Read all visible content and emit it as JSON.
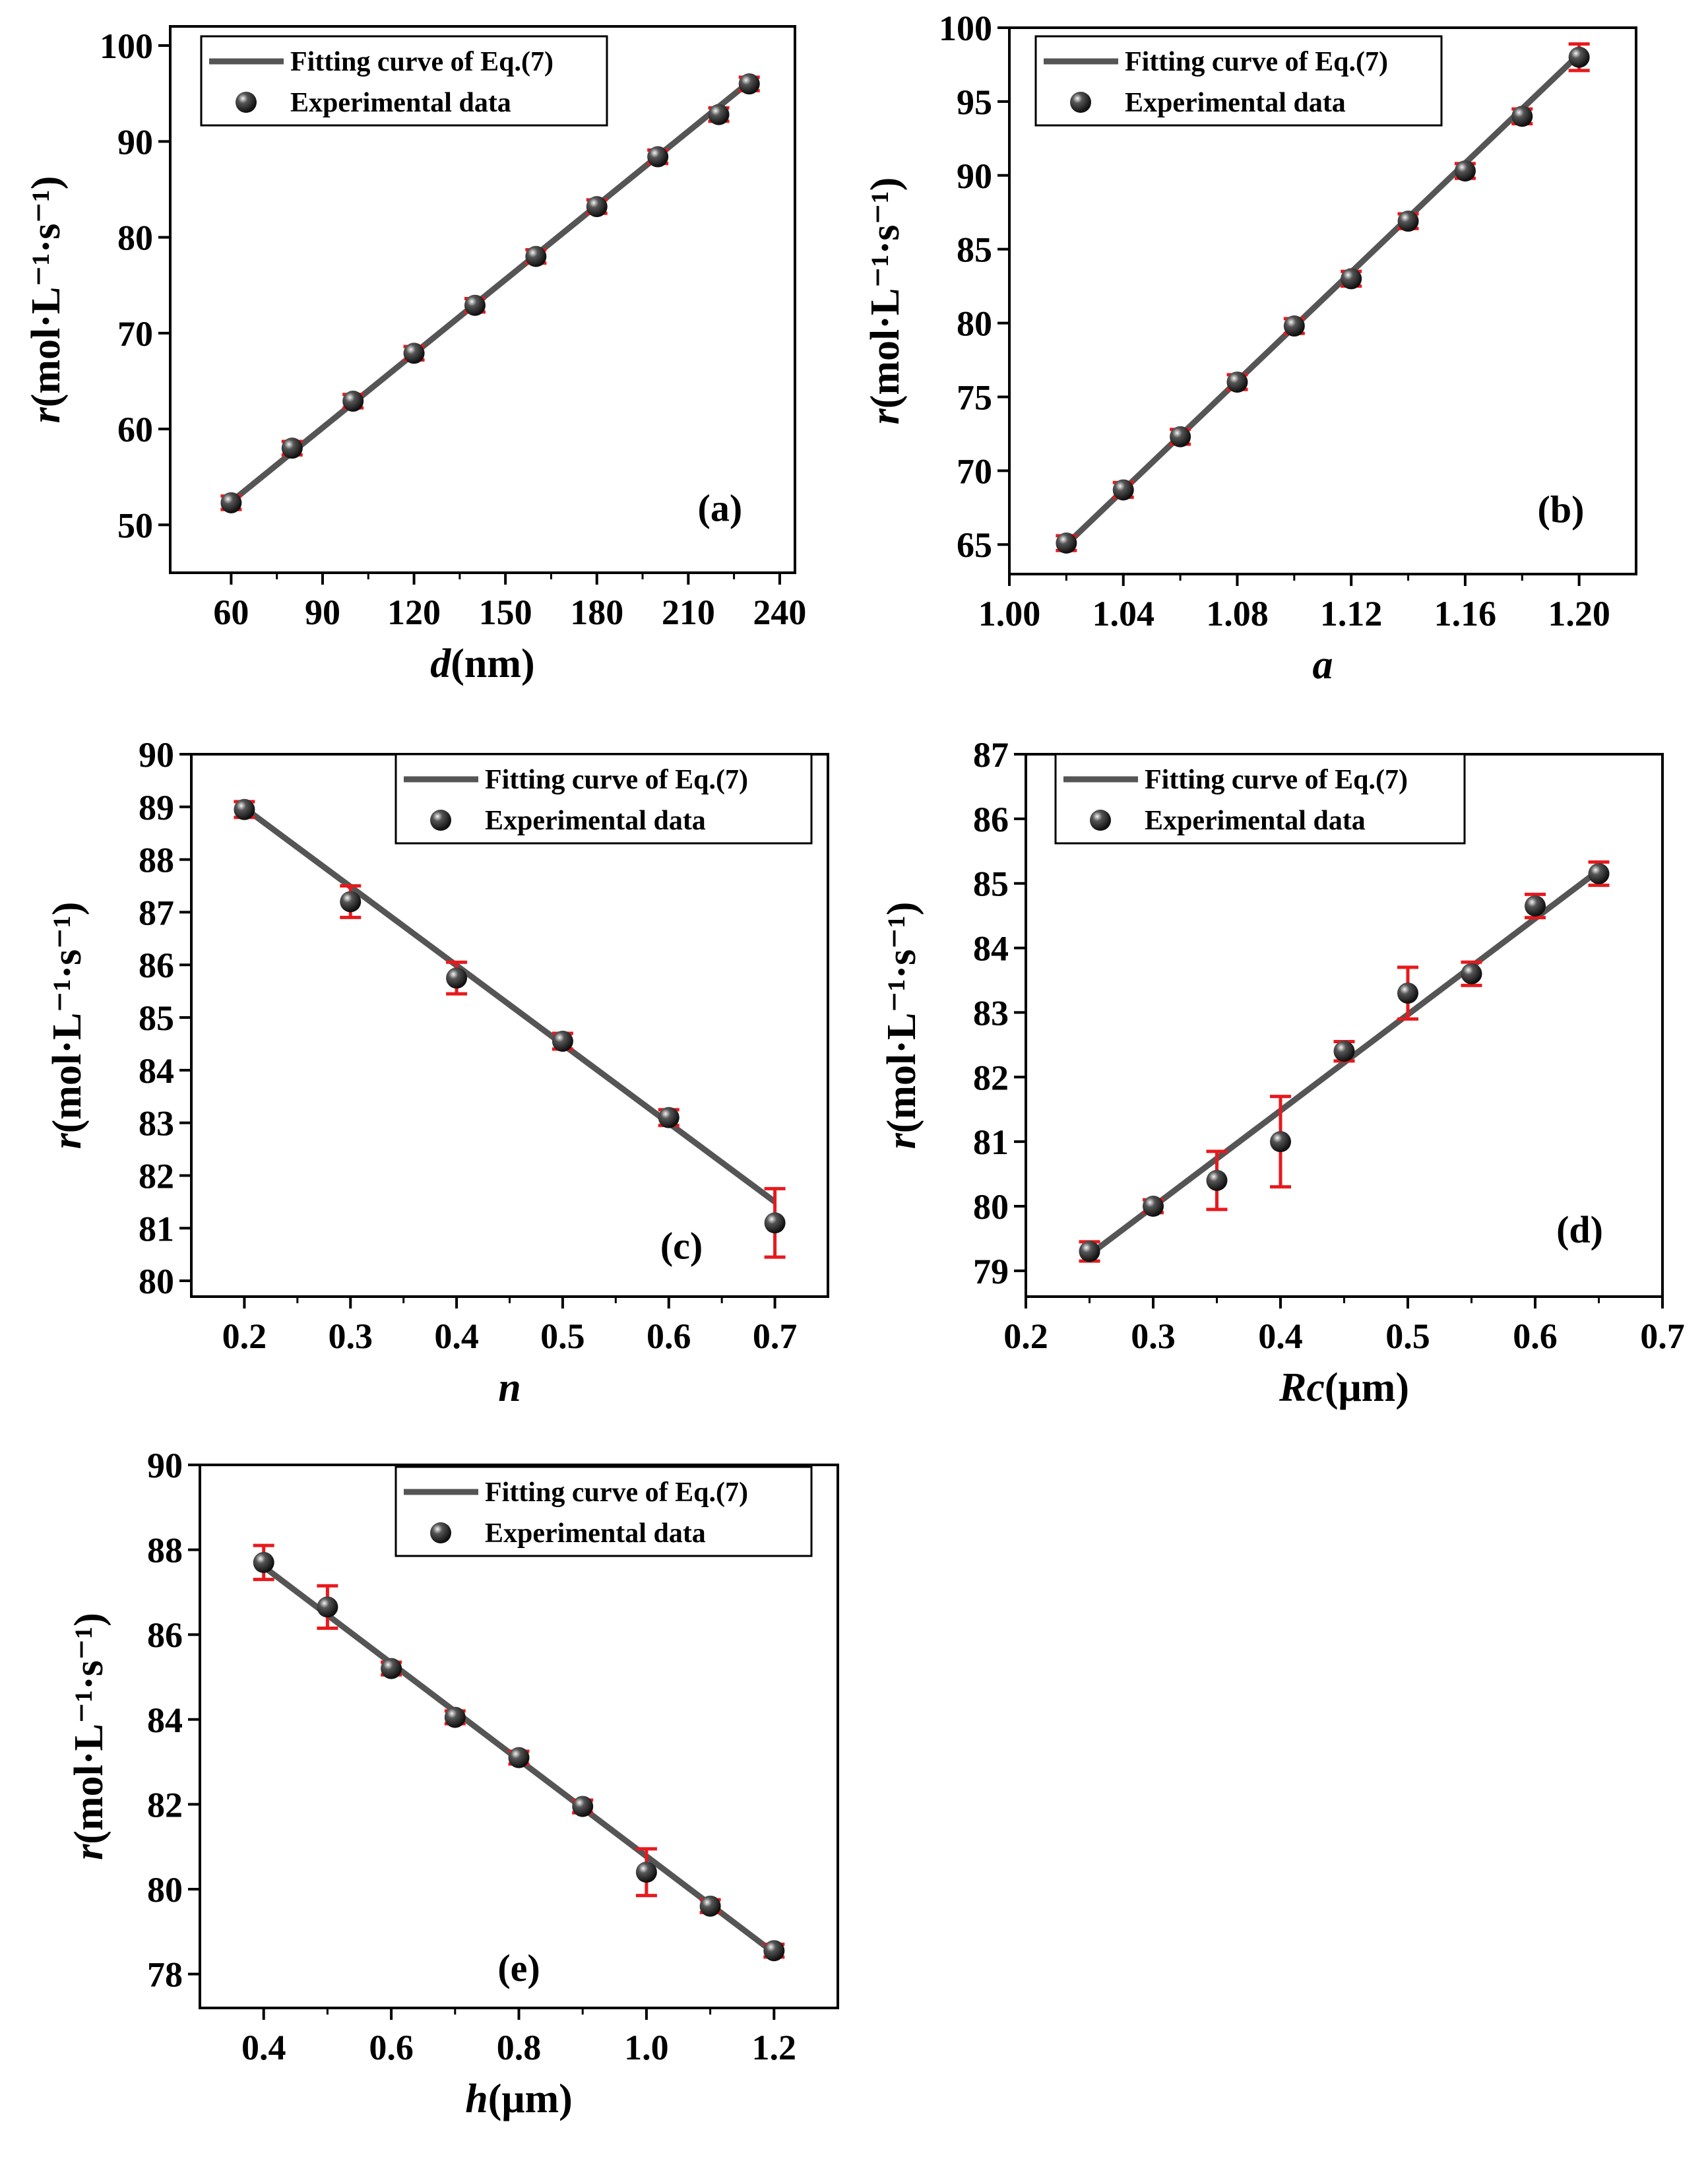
{
  "figure_title": "",
  "legend": {
    "fit_label": "Fitting curve of Eq.(7)",
    "data_label": "Experimental data"
  },
  "colors": {
    "fit_line": "#555555",
    "marker": "#111111",
    "error_bar": "#e8191d",
    "axis": "#000000"
  },
  "chart_data": [
    {
      "panel": "(a)",
      "type": "scatter",
      "xlabel_italic": "d",
      "xlabel_rest": "(nm)",
      "ylabel_italic": "r",
      "ylabel_rest": "(mol·L⁻¹·s⁻¹)",
      "xlim": [
        40,
        245
      ],
      "ylim": [
        45,
        102
      ],
      "xticks": [
        60,
        90,
        120,
        150,
        180,
        210,
        240
      ],
      "yticks": [
        50,
        60,
        70,
        80,
        90,
        100
      ],
      "tick_decimals": 0,
      "x": [
        60,
        80,
        100,
        120,
        140,
        160,
        180,
        200,
        220,
        230
      ],
      "y": [
        52.3,
        58.0,
        62.9,
        67.9,
        72.9,
        78.0,
        83.2,
        88.4,
        92.8,
        96.0
      ],
      "err": [
        0.7,
        0.7,
        0.7,
        0.7,
        0.7,
        0.7,
        0.7,
        0.7,
        0.7,
        0.7
      ],
      "fit": [
        [
          60,
          52.4
        ],
        [
          230,
          96.2
        ]
      ]
    },
    {
      "panel": "(b)",
      "type": "scatter",
      "xlabel_italic": "a",
      "xlabel_rest": "",
      "ylabel_italic": "r",
      "ylabel_rest": "(mol·L⁻¹·s⁻¹)",
      "xlim": [
        1.0,
        1.22
      ],
      "ylim": [
        63,
        100
      ],
      "xticks": [
        1.0,
        1.04,
        1.08,
        1.12,
        1.16,
        1.2
      ],
      "yticks": [
        65,
        70,
        75,
        80,
        85,
        90,
        95,
        100
      ],
      "tick_decimals": 2,
      "ytick_decimals": 0,
      "x": [
        1.02,
        1.04,
        1.06,
        1.08,
        1.1,
        1.12,
        1.14,
        1.16,
        1.18,
        1.2
      ],
      "y": [
        65.1,
        68.7,
        72.3,
        76.0,
        79.8,
        83.0,
        86.9,
        90.3,
        94.0,
        98.0
      ],
      "err": [
        0.5,
        0.5,
        0.5,
        0.5,
        0.5,
        0.5,
        0.5,
        0.5,
        0.5,
        0.9
      ],
      "fit": [
        [
          1.02,
          65.0
        ],
        [
          1.2,
          98.2
        ]
      ]
    },
    {
      "panel": "(c)",
      "type": "scatter",
      "xlabel_italic": "n",
      "xlabel_rest": "",
      "ylabel_italic": "r",
      "ylabel_rest": "(mol·L⁻¹·s⁻¹)",
      "xlim": [
        0.15,
        0.75
      ],
      "ylim": [
        79.7,
        90
      ],
      "xticks": [
        0.2,
        0.3,
        0.4,
        0.5,
        0.6,
        0.7
      ],
      "yticks": [
        80,
        81,
        82,
        83,
        84,
        85,
        86,
        87,
        88,
        89,
        90
      ],
      "tick_decimals": 1,
      "ytick_decimals": 0,
      "x": [
        0.2,
        0.3,
        0.4,
        0.5,
        0.6,
        0.7
      ],
      "y": [
        88.95,
        87.2,
        85.75,
        84.55,
        83.1,
        81.1
      ],
      "err": [
        0.15,
        0.3,
        0.3,
        0.15,
        0.15,
        0.65
      ],
      "fit": [
        [
          0.2,
          88.98
        ],
        [
          0.7,
          81.5
        ]
      ]
    },
    {
      "panel": "(d)",
      "type": "scatter",
      "xlabel_italic": "Rc",
      "xlabel_rest": "(μm)",
      "ylabel_italic": "r",
      "ylabel_rest": "(mol·L⁻¹·s⁻¹)",
      "xlim": [
        0.2,
        0.7
      ],
      "ylim": [
        78.6,
        87
      ],
      "xticks": [
        0.2,
        0.3,
        0.4,
        0.5,
        0.6,
        0.7
      ],
      "yticks": [
        79,
        80,
        81,
        82,
        83,
        84,
        85,
        86,
        87
      ],
      "tick_decimals": 1,
      "ytick_decimals": 0,
      "x": [
        0.25,
        0.3,
        0.35,
        0.4,
        0.45,
        0.5,
        0.55,
        0.6,
        0.65
      ],
      "y": [
        79.3,
        80.0,
        80.4,
        81.0,
        82.4,
        83.3,
        83.6,
        84.65,
        85.15
      ],
      "err": [
        0.15,
        0.1,
        0.45,
        0.7,
        0.15,
        0.4,
        0.18,
        0.18,
        0.18
      ],
      "fit": [
        [
          0.25,
          79.25
        ],
        [
          0.65,
          85.2
        ]
      ]
    },
    {
      "panel": "(e)",
      "type": "scatter",
      "xlabel_italic": "h",
      "xlabel_rest": "(μm)",
      "ylabel_italic": "r",
      "ylabel_rest": "(mol·L⁻¹·s⁻¹)",
      "xlim": [
        0.3,
        1.3
      ],
      "ylim": [
        77.2,
        90
      ],
      "xticks": [
        0.4,
        0.6,
        0.8,
        1.0,
        1.2
      ],
      "yticks": [
        78,
        80,
        82,
        84,
        86,
        88,
        90
      ],
      "tick_decimals": 1,
      "ytick_decimals": 0,
      "x": [
        0.4,
        0.5,
        0.6,
        0.7,
        0.8,
        0.9,
        1.0,
        1.1,
        1.2
      ],
      "y": [
        87.7,
        86.65,
        85.2,
        84.05,
        83.1,
        81.95,
        80.4,
        79.6,
        78.55
      ],
      "err": [
        0.4,
        0.5,
        0.15,
        0.15,
        0.15,
        0.15,
        0.55,
        0.15,
        0.15
      ],
      "fit": [
        [
          0.4,
          87.6
        ],
        [
          1.2,
          78.5
        ]
      ]
    }
  ]
}
